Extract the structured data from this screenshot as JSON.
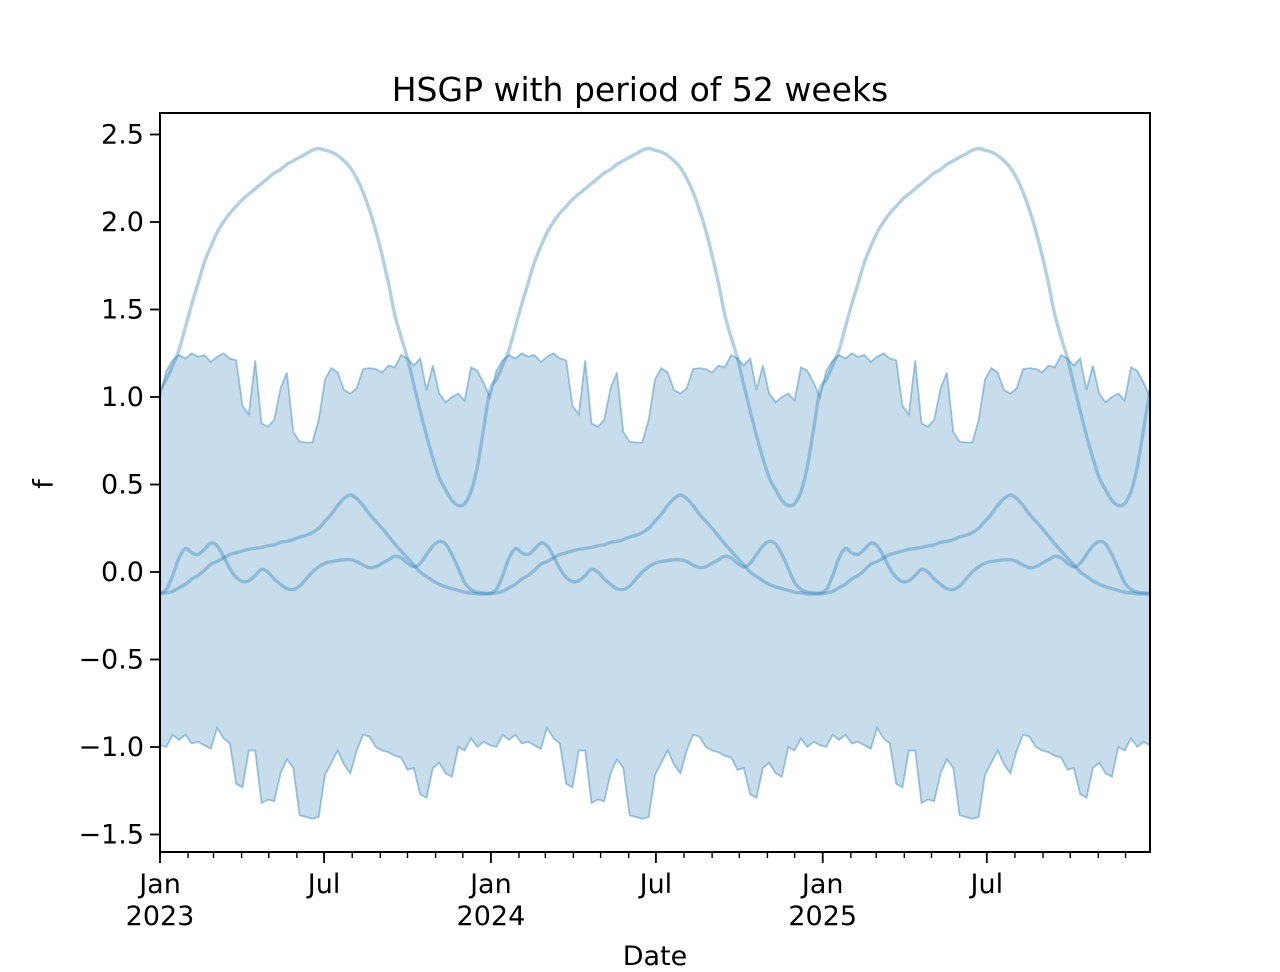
{
  "title": "HSGP with period of 52 weeks",
  "axes": {
    "xlabel": "Date",
    "ylabel": "f",
    "y_tick_labels": [
      "2.5",
      "2.0",
      "1.5",
      "1.0",
      "0.5",
      "0.0",
      "−0.5",
      "−1.0",
      "−1.5"
    ],
    "x_major_tick_labels": [
      {
        "week": 0,
        "line1": "Jan",
        "line2": "2023"
      },
      {
        "week": 25.857,
        "line1": "Jul",
        "line2": ""
      },
      {
        "week": 52.143,
        "line1": "Jan",
        "line2": "2024"
      },
      {
        "week": 78.143,
        "line1": "Jul",
        "line2": ""
      },
      {
        "week": 104.429,
        "line1": "Jan",
        "line2": "2025"
      },
      {
        "week": 130.286,
        "line1": "Jul",
        "line2": ""
      }
    ]
  },
  "colors": {
    "base": "#1f77b4",
    "band_fill_alpha": 0.25,
    "band_edge_alpha": 0.4,
    "curve_alpha": 0.35,
    "axis_color": "#000000"
  },
  "chart_data": {
    "type": "line",
    "title": "HSGP with period of 52 weeks",
    "xlabel": "Date",
    "ylabel": "f",
    "x_unit": "weeks since 2023-01-01",
    "x_range_weeks": [
      0,
      156
    ],
    "ylim": [
      -1.602,
      2.623
    ],
    "y_ticks": [
      2.5,
      2.0,
      1.5,
      1.0,
      0.5,
      0.0,
      -0.5,
      -1.0,
      -1.5
    ],
    "major_tick_weeks": [
      0,
      25.857,
      52.143,
      78.143,
      104.429,
      130.286
    ],
    "month_start_days": [
      0,
      31,
      59,
      90,
      120,
      151,
      181,
      212,
      243,
      273,
      304,
      334,
      365,
      396,
      425,
      456,
      486,
      517,
      547,
      578,
      609,
      639,
      670,
      700,
      731,
      762,
      790,
      821,
      851,
      882,
      912,
      943,
      974,
      1004,
      1035,
      1065
    ],
    "period_weeks": 52,
    "legend": "none",
    "grid": false,
    "band": {
      "name": "credible-interval-band",
      "upper_weekly": [
        1.0,
        1.15,
        1.21,
        1.24,
        1.22,
        1.25,
        1.23,
        1.24,
        1.2,
        1.23,
        1.25,
        1.22,
        1.21,
        0.95,
        0.9,
        1.21,
        0.85,
        0.83,
        0.87,
        1.05,
        1.14,
        0.8,
        0.745,
        0.74,
        0.74,
        0.87,
        1.1,
        1.165,
        1.14,
        1.04,
        1.02,
        1.05,
        1.16,
        1.165,
        1.16,
        1.14,
        1.18,
        1.17,
        1.24,
        1.22,
        1.18,
        1.22,
        1.04,
        1.18,
        1.02,
        0.97,
        1.0,
        1.02,
        0.98,
        1.17,
        1.15,
        1.08
      ],
      "lower_weekly": [
        -0.99,
        -1.0,
        -0.93,
        -0.96,
        -0.93,
        -0.98,
        -0.97,
        -0.99,
        -1.01,
        -0.89,
        -0.95,
        -0.98,
        -1.21,
        -1.23,
        -1.02,
        -1.02,
        -1.32,
        -1.3,
        -1.31,
        -1.15,
        -1.07,
        -1.12,
        -1.39,
        -1.4,
        -1.41,
        -1.4,
        -1.16,
        -1.09,
        -1.02,
        -1.1,
        -1.15,
        -1.02,
        -0.93,
        -0.94,
        -1.0,
        -1.02,
        -1.03,
        -1.05,
        -1.06,
        -1.13,
        -1.12,
        -1.27,
        -1.29,
        -1.12,
        -1.09,
        -1.15,
        -1.17,
        -1.0,
        -1.02,
        -0.95,
        -1.0,
        -0.97
      ]
    },
    "series": [
      {
        "name": "prior-sample-1",
        "weekly_values": [
          1.04,
          1.1,
          1.18,
          1.27,
          1.4,
          1.53,
          1.65,
          1.77,
          1.86,
          1.94,
          2.0,
          2.05,
          2.09,
          2.13,
          2.16,
          2.19,
          2.22,
          2.25,
          2.28,
          2.3,
          2.33,
          2.35,
          2.37,
          2.39,
          2.41,
          2.42,
          2.41,
          2.4,
          2.38,
          2.35,
          2.31,
          2.25,
          2.17,
          2.07,
          1.95,
          1.81,
          1.65,
          1.47,
          1.34,
          1.22,
          1.07,
          0.92,
          0.78,
          0.65,
          0.54,
          0.47,
          0.41,
          0.38,
          0.39,
          0.46,
          0.6,
          0.82
        ]
      },
      {
        "name": "prior-sample-2",
        "weekly_values": [
          -0.125,
          -0.12,
          -0.11,
          -0.09,
          -0.07,
          -0.04,
          -0.02,
          0.01,
          0.045,
          0.06,
          0.08,
          0.1,
          0.11,
          0.12,
          0.13,
          0.135,
          0.14,
          0.15,
          0.155,
          0.17,
          0.175,
          0.185,
          0.2,
          0.21,
          0.225,
          0.25,
          0.29,
          0.33,
          0.38,
          0.42,
          0.44,
          0.42,
          0.38,
          0.33,
          0.29,
          0.25,
          0.205,
          0.16,
          0.12,
          0.08,
          0.04,
          0.0,
          -0.025,
          -0.05,
          -0.07,
          -0.085,
          -0.095,
          -0.105,
          -0.115,
          -0.12,
          -0.125,
          -0.125
        ]
      },
      {
        "name": "prior-sample-3",
        "weekly_values": [
          -0.12,
          -0.1,
          -0.02,
          0.08,
          0.135,
          0.11,
          0.1,
          0.13,
          0.165,
          0.15,
          0.09,
          0.02,
          -0.03,
          -0.055,
          -0.05,
          -0.02,
          0.015,
          0.0,
          -0.04,
          -0.07,
          -0.095,
          -0.1,
          -0.08,
          -0.04,
          0.0,
          0.03,
          0.05,
          0.06,
          0.065,
          0.07,
          0.07,
          0.06,
          0.04,
          0.025,
          0.03,
          0.05,
          0.07,
          0.09,
          0.08,
          0.05,
          0.03,
          0.05,
          0.1,
          0.15,
          0.175,
          0.16,
          0.1,
          0.02,
          -0.06,
          -0.1,
          -0.115,
          -0.12
        ]
      }
    ]
  }
}
